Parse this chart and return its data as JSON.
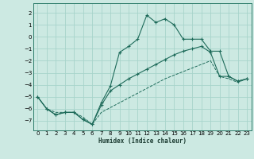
{
  "xlabel": "Humidex (Indice chaleur)",
  "bg_color": "#cce9e2",
  "grid_color": "#a8d4cb",
  "line_color": "#1e6b5a",
  "xlim": [
    -0.5,
    23.5
  ],
  "ylim": [
    -7.8,
    2.8
  ],
  "xticks": [
    0,
    1,
    2,
    3,
    4,
    5,
    6,
    7,
    8,
    9,
    10,
    11,
    12,
    13,
    14,
    15,
    16,
    17,
    18,
    19,
    20,
    21,
    22,
    23
  ],
  "yticks": [
    -7,
    -6,
    -5,
    -4,
    -3,
    -2,
    -1,
    0,
    1,
    2
  ],
  "series1_y": [
    -5.0,
    -6.0,
    -6.5,
    -6.3,
    -6.3,
    -6.9,
    -7.3,
    -5.5,
    -4.1,
    -1.3,
    -0.8,
    -0.2,
    1.8,
    1.2,
    1.5,
    1.0,
    -0.2,
    -0.2,
    -0.2,
    -1.2,
    -1.2,
    -3.3,
    -3.7,
    -3.5
  ],
  "series2_y": [
    -5.0,
    -6.0,
    -6.5,
    -6.3,
    -6.3,
    -6.9,
    -7.3,
    -5.7,
    -4.5,
    -4.0,
    -3.5,
    -3.1,
    -2.7,
    -2.3,
    -1.9,
    -1.5,
    -1.2,
    -1.0,
    -0.8,
    -1.3,
    -3.3,
    -3.3,
    -3.7,
    -3.5
  ],
  "series3_y": [
    -5.0,
    -6.0,
    -6.3,
    -6.3,
    -6.3,
    -6.7,
    -7.3,
    -6.3,
    -5.9,
    -5.5,
    -5.1,
    -4.7,
    -4.3,
    -3.9,
    -3.5,
    -3.2,
    -2.9,
    -2.6,
    -2.3,
    -2.0,
    -3.3,
    -3.5,
    -3.8,
    -3.5
  ]
}
